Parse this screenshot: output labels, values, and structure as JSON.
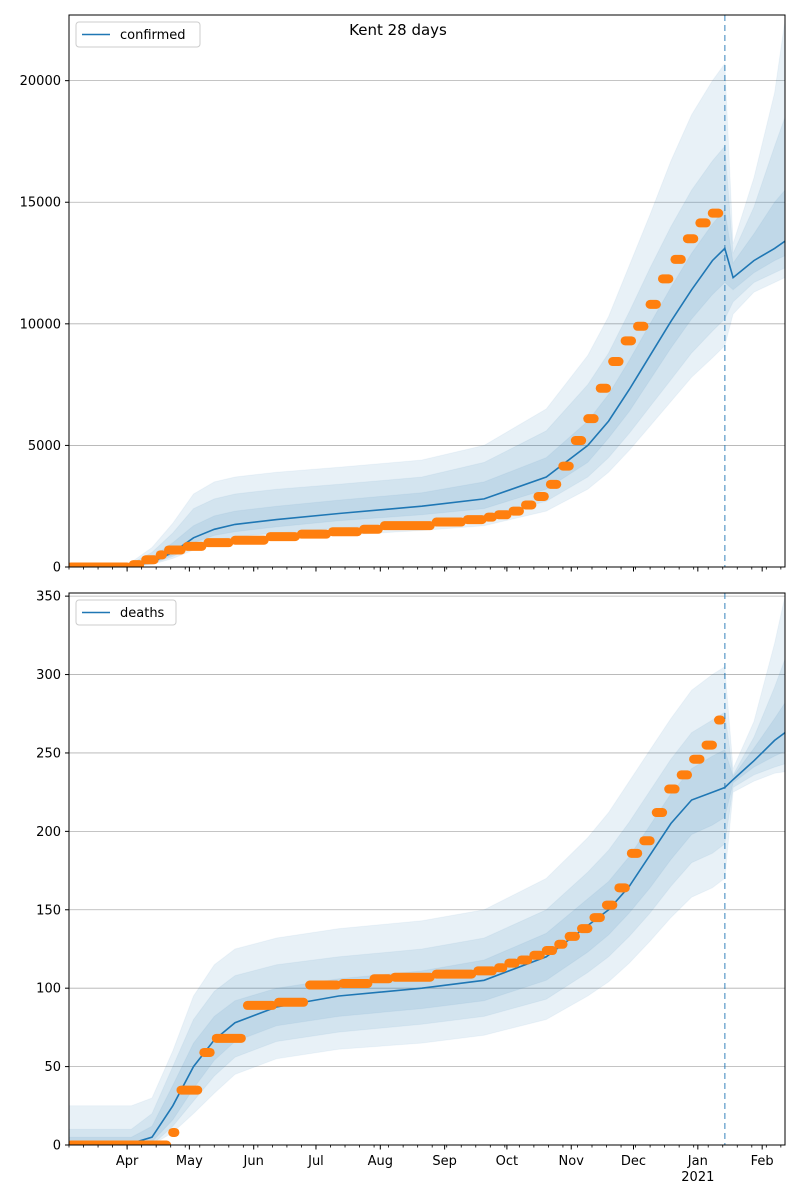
{
  "chart_data": [
    {
      "type": "line",
      "title": "Kent 28 days",
      "legend": {
        "label": "confirmed",
        "placement": "top-left"
      },
      "ylim": [
        0,
        22700
      ],
      "yticks": [
        0,
        5000,
        10000,
        15000,
        20000
      ],
      "grid": "horizontal",
      "vline_x": 316,
      "colors": {
        "line": "#1f77b4",
        "band": "#1f77b4",
        "points": "#ff7f0e",
        "vline": "#1f77b4"
      },
      "x": [
        0,
        20,
        30,
        40,
        50,
        60,
        70,
        80,
        100,
        130,
        170,
        200,
        230,
        250,
        260,
        270,
        280,
        290,
        300,
        310,
        316,
        320,
        330,
        340,
        345
      ],
      "median": [
        0,
        0,
        50,
        200,
        600,
        1200,
        1550,
        1750,
        1950,
        2200,
        2500,
        2800,
        3700,
        5000,
        6000,
        7300,
        8700,
        10100,
        11400,
        12600,
        13100,
        11900,
        12600,
        13100,
        13400
      ],
      "bands": [
        {
          "lower": [
            0,
            0,
            20,
            100,
            350,
            700,
            900,
            1000,
            1150,
            1300,
            1500,
            1700,
            2300,
            3200,
            3900,
            4800,
            5800,
            6800,
            7800,
            8600,
            9100,
            10400,
            11300,
            11700,
            11900
          ],
          "upper": [
            0,
            0,
            200,
            800,
            1800,
            3000,
            3500,
            3700,
            3900,
            4100,
            4400,
            5000,
            6500,
            8700,
            10300,
            12400,
            14500,
            16700,
            18600,
            20000,
            20700,
            13300,
            16000,
            19500,
            22500
          ]
        },
        {
          "lower": [
            0,
            0,
            30,
            130,
            430,
            850,
            1100,
            1250,
            1400,
            1600,
            1800,
            2050,
            2700,
            3700,
            4500,
            5500,
            6600,
            7700,
            8800,
            9700,
            10200,
            10900,
            11700,
            12100,
            12300
          ],
          "upper": [
            0,
            0,
            150,
            600,
            1400,
            2400,
            2800,
            3000,
            3200,
            3400,
            3700,
            4300,
            5600,
            7500,
            8800,
            10500,
            12300,
            14000,
            15500,
            16700,
            17300,
            12900,
            14800,
            17300,
            18500
          ]
        },
        {
          "lower": [
            0,
            0,
            40,
            160,
            500,
            1000,
            1300,
            1450,
            1650,
            1900,
            2150,
            2400,
            3200,
            4300,
            5300,
            6400,
            7700,
            9000,
            10200,
            11200,
            11700,
            11400,
            12100,
            12600,
            12800
          ],
          "upper": [
            0,
            0,
            90,
            400,
            1000,
            1700,
            2100,
            2300,
            2500,
            2750,
            3050,
            3500,
            4500,
            6000,
            7100,
            8500,
            10000,
            11500,
            12900,
            14100,
            14700,
            12500,
            13700,
            15000,
            15500
          ]
        }
      ],
      "observed": [
        {
          "x": [
            0,
            29
          ],
          "y": 0
        },
        {
          "x": [
            30,
            35
          ],
          "y": 100
        },
        {
          "x": [
            36,
            42
          ],
          "y": 300
        },
        {
          "x": [
            43,
            46
          ],
          "y": 500
        },
        {
          "x": [
            47,
            55
          ],
          "y": 700
        },
        {
          "x": [
            56,
            65
          ],
          "y": 850
        },
        {
          "x": [
            66,
            78
          ],
          "y": 1000
        },
        {
          "x": [
            79,
            95
          ],
          "y": 1100
        },
        {
          "x": [
            96,
            110
          ],
          "y": 1250
        },
        {
          "x": [
            111,
            125
          ],
          "y": 1350
        },
        {
          "x": [
            126,
            140
          ],
          "y": 1450
        },
        {
          "x": [
            141,
            150
          ],
          "y": 1550
        },
        {
          "x": [
            151,
            175
          ],
          "y": 1700
        },
        {
          "x": [
            176,
            190
          ],
          "y": 1850
        },
        {
          "x": [
            191,
            200
          ],
          "y": 1950
        },
        {
          "x": [
            201,
            205
          ],
          "y": 2050
        },
        {
          "x": [
            206,
            212
          ],
          "y": 2150
        },
        {
          "x": [
            213,
            218
          ],
          "y": 2300
        },
        {
          "x": [
            219,
            224
          ],
          "y": 2550
        },
        {
          "x": [
            225,
            230
          ],
          "y": 2900
        },
        {
          "x": [
            231,
            236
          ],
          "y": 3400
        },
        {
          "x": [
            237,
            242
          ],
          "y": 4150
        },
        {
          "x": [
            243,
            248
          ],
          "y": 5200
        },
        {
          "x": [
            249,
            254
          ],
          "y": 6100
        },
        {
          "x": [
            255,
            260
          ],
          "y": 7350
        },
        {
          "x": [
            261,
            266
          ],
          "y": 8450
        },
        {
          "x": [
            267,
            272
          ],
          "y": 9300
        },
        {
          "x": [
            273,
            278
          ],
          "y": 9900
        },
        {
          "x": [
            279,
            284
          ],
          "y": 10800
        },
        {
          "x": [
            285,
            290
          ],
          "y": 11850
        },
        {
          "x": [
            291,
            296
          ],
          "y": 12650
        },
        {
          "x": [
            297,
            302
          ],
          "y": 13500
        },
        {
          "x": [
            303,
            308
          ],
          "y": 14150
        },
        {
          "x": [
            309,
            314
          ],
          "y": 14550
        }
      ]
    },
    {
      "type": "line",
      "legend": {
        "label": "deaths",
        "placement": "top-left"
      },
      "ylim": [
        0,
        352
      ],
      "yticks": [
        0,
        50,
        100,
        150,
        200,
        250,
        300,
        350
      ],
      "grid": "horizontal",
      "vline_x": 316,
      "colors": {
        "line": "#1f77b4",
        "band": "#1f77b4",
        "points": "#ff7f0e",
        "vline": "#1f77b4"
      },
      "x": [
        0,
        20,
        30,
        40,
        50,
        60,
        70,
        80,
        100,
        130,
        170,
        200,
        230,
        250,
        260,
        270,
        280,
        290,
        300,
        310,
        316,
        320,
        330,
        340,
        345
      ],
      "median": [
        0,
        0,
        1,
        5,
        25,
        50,
        67,
        78,
        88,
        95,
        100,
        105,
        120,
        140,
        150,
        165,
        185,
        205,
        220,
        225,
        228,
        233,
        245,
        258,
        263
      ],
      "bands": [
        {
          "lower": [
            0,
            0,
            0,
            0,
            8,
            20,
            33,
            45,
            55,
            61,
            65,
            70,
            80,
            95,
            104,
            116,
            130,
            145,
            158,
            164,
            170,
            225,
            232,
            237,
            238
          ],
          "upper": [
            25,
            25,
            25,
            30,
            60,
            95,
            115,
            125,
            132,
            138,
            143,
            150,
            170,
            196,
            212,
            232,
            252,
            272,
            290,
            300,
            305,
            240,
            270,
            320,
            350
          ]
        },
        {
          "lower": [
            0,
            0,
            0,
            0,
            12,
            28,
            44,
            56,
            66,
            72,
            77,
            82,
            93,
            110,
            120,
            133,
            148,
            165,
            180,
            186,
            192,
            228,
            236,
            241,
            243
          ],
          "upper": [
            10,
            10,
            10,
            20,
            50,
            80,
            98,
            108,
            115,
            120,
            125,
            132,
            150,
            174,
            188,
            206,
            226,
            246,
            263,
            271,
            276,
            236,
            260,
            292,
            310
          ]
        },
        {
          "lower": [
            0,
            0,
            0,
            2,
            16,
            36,
            54,
            66,
            76,
            82,
            87,
            92,
            105,
            123,
            134,
            148,
            164,
            182,
            198,
            204,
            209,
            231,
            241,
            248,
            251
          ],
          "upper": [
            5,
            5,
            5,
            12,
            38,
            65,
            82,
            92,
            100,
            106,
            111,
            118,
            135,
            157,
            168,
            184,
            204,
            224,
            240,
            248,
            252,
            235,
            253,
            272,
            282
          ]
        }
      ],
      "observed": [
        {
          "x": [
            0,
            48
          ],
          "y": 0
        },
        {
          "x": [
            49,
            52
          ],
          "y": 8
        },
        {
          "x": [
            53,
            63
          ],
          "y": 35
        },
        {
          "x": [
            64,
            69
          ],
          "y": 59
        },
        {
          "x": [
            70,
            84
          ],
          "y": 68
        },
        {
          "x": [
            85,
            99
          ],
          "y": 89
        },
        {
          "x": [
            100,
            114
          ],
          "y": 91
        },
        {
          "x": [
            115,
            130
          ],
          "y": 102
        },
        {
          "x": [
            131,
            145
          ],
          "y": 103
        },
        {
          "x": [
            146,
            155
          ],
          "y": 106
        },
        {
          "x": [
            156,
            175
          ],
          "y": 107
        },
        {
          "x": [
            176,
            195
          ],
          "y": 109
        },
        {
          "x": [
            196,
            205
          ],
          "y": 111
        },
        {
          "x": [
            206,
            210
          ],
          "y": 113
        },
        {
          "x": [
            211,
            216
          ],
          "y": 116
        },
        {
          "x": [
            217,
            222
          ],
          "y": 118
        },
        {
          "x": [
            223,
            228
          ],
          "y": 121
        },
        {
          "x": [
            229,
            234
          ],
          "y": 124
        },
        {
          "x": [
            235,
            239
          ],
          "y": 128
        },
        {
          "x": [
            240,
            245
          ],
          "y": 133
        },
        {
          "x": [
            246,
            251
          ],
          "y": 138
        },
        {
          "x": [
            252,
            257
          ],
          "y": 145
        },
        {
          "x": [
            258,
            263
          ],
          "y": 153
        },
        {
          "x": [
            264,
            269
          ],
          "y": 164
        },
        {
          "x": [
            270,
            275
          ],
          "y": 186
        },
        {
          "x": [
            276,
            281
          ],
          "y": 194
        },
        {
          "x": [
            282,
            287
          ],
          "y": 212
        },
        {
          "x": [
            288,
            293
          ],
          "y": 227
        },
        {
          "x": [
            294,
            299
          ],
          "y": 236
        },
        {
          "x": [
            300,
            305
          ],
          "y": 246
        },
        {
          "x": [
            306,
            311
          ],
          "y": 255
        },
        {
          "x": [
            312,
            315
          ],
          "y": 271
        }
      ]
    }
  ],
  "xaxis": {
    "month_labels": [
      {
        "x": 28,
        "label": "Apr"
      },
      {
        "x": 58,
        "label": "May"
      },
      {
        "x": 89,
        "label": "Jun"
      },
      {
        "x": 119,
        "label": "Jul"
      },
      {
        "x": 150,
        "label": "Aug"
      },
      {
        "x": 181,
        "label": "Sep"
      },
      {
        "x": 211,
        "label": "Oct"
      },
      {
        "x": 242,
        "label": "Nov"
      },
      {
        "x": 272,
        "label": "Dec"
      },
      {
        "x": 303,
        "label": "Jan"
      },
      {
        "x": 334,
        "label": "Feb"
      }
    ],
    "year_label": {
      "x": 303,
      "label": "2021"
    },
    "xlim": [
      0,
      345
    ]
  }
}
